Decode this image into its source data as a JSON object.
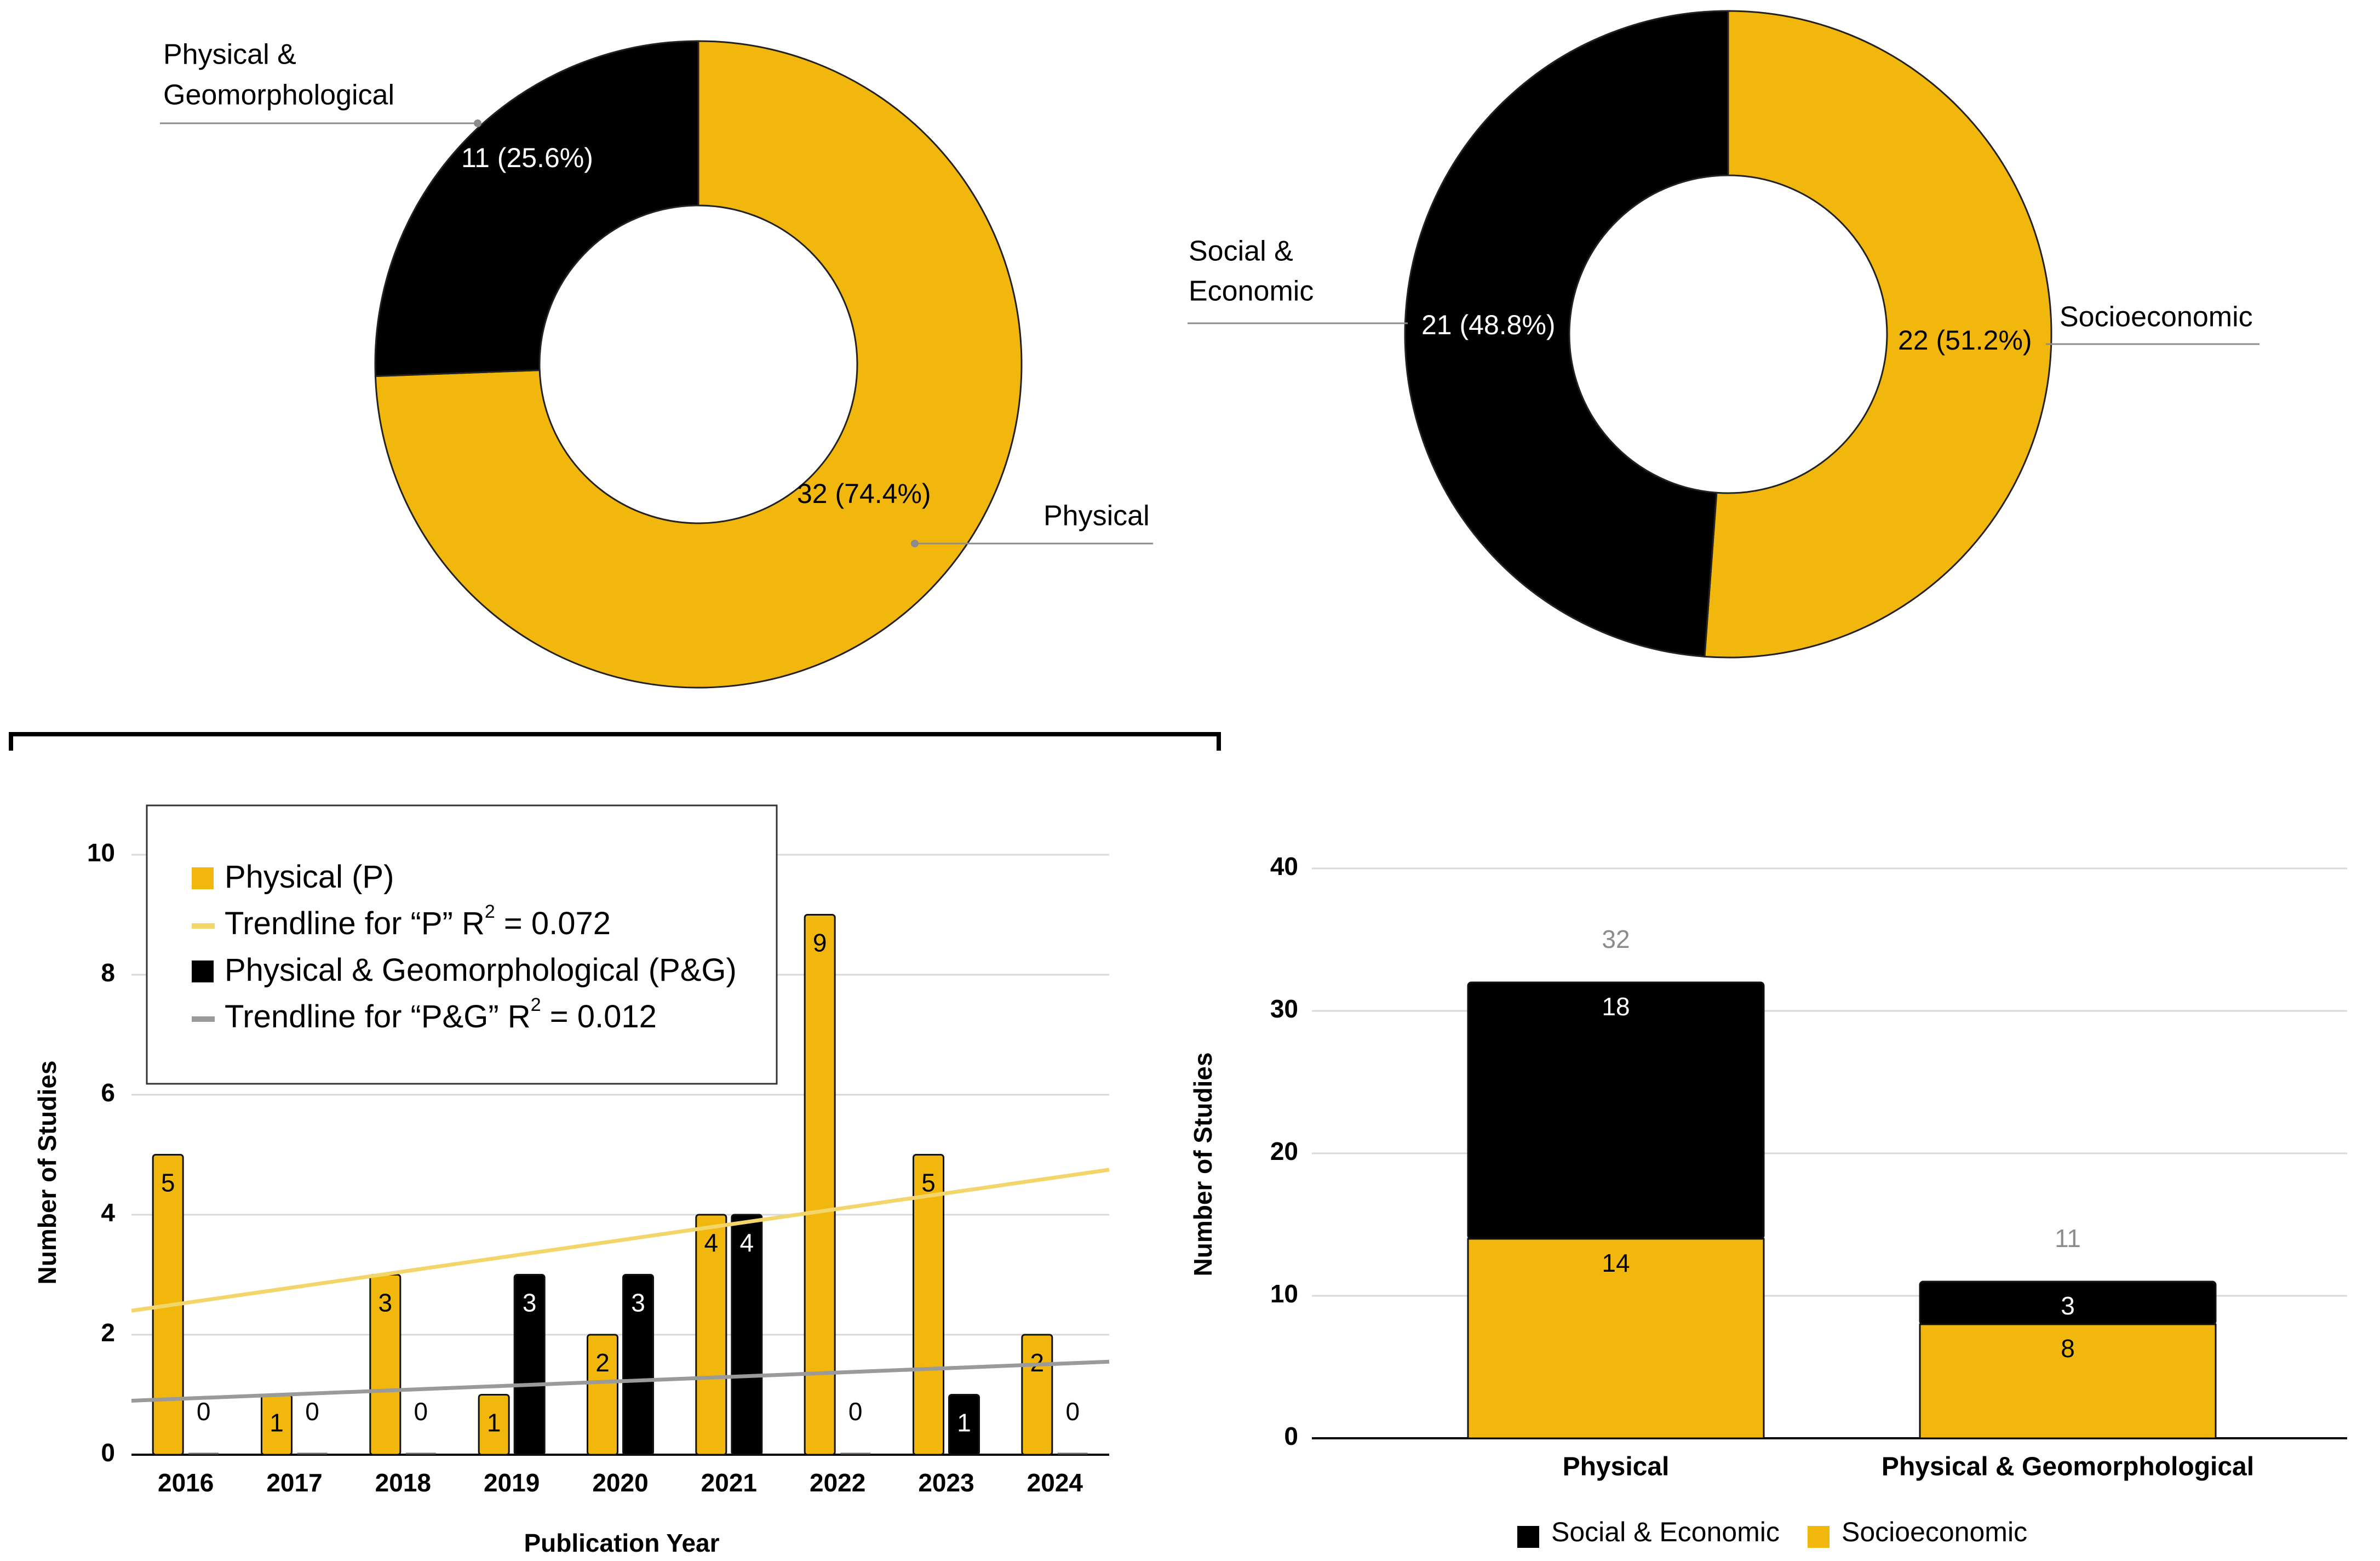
{
  "colors": {
    "gold": "#F2B70D",
    "black": "#000000",
    "trend_p": "#F3D66B",
    "trend_pg": "#9A9A9A",
    "grid": "#D9D9D9",
    "leader": "#8C8C8C",
    "total_label": "#8C8C8C"
  },
  "chart_data": [
    {
      "type": "pie",
      "variant": "donut",
      "title": "",
      "slices": [
        {
          "name": "Physical",
          "value": 32,
          "percent": 74.4,
          "label": "32 (74.4%)",
          "color": "#F2B70D"
        },
        {
          "name": "Physical & Geomorphological",
          "value": 11,
          "percent": 25.6,
          "label": "11 (25.6%)",
          "color": "#000000"
        }
      ],
      "external_labels": [
        "Physical",
        "Physical &",
        "Geomorphological"
      ]
    },
    {
      "type": "pie",
      "variant": "donut",
      "title": "",
      "slices": [
        {
          "name": "Socioeconomic",
          "value": 22,
          "percent": 51.2,
          "label": "22 (51.2%)",
          "color": "#F2B70D"
        },
        {
          "name": "Social & Economic",
          "value": 21,
          "percent": 48.8,
          "label": "21 (48.8%)",
          "color": "#000000"
        }
      ],
      "external_labels": [
        "Socioeconomic",
        "Social &",
        "Economic"
      ]
    },
    {
      "type": "bar",
      "title": "",
      "categories": [
        "2016",
        "2017",
        "2018",
        "2019",
        "2020",
        "2021",
        "2022",
        "2023",
        "2024"
      ],
      "series": [
        {
          "name": "Physical (P)",
          "values": [
            5,
            1,
            3,
            1,
            2,
            4,
            9,
            5,
            2
          ],
          "color": "#F2B70D"
        },
        {
          "name": "Physical & Geomorphological (P&G)",
          "values": [
            0,
            0,
            0,
            3,
            3,
            4,
            0,
            1,
            0
          ],
          "color": "#000000"
        }
      ],
      "trendlines": [
        {
          "name": "Trendline for “P”",
          "r2": "R2 = 0.072",
          "start": 2.4,
          "end": 4.75,
          "color": "#F3D66B"
        },
        {
          "name": "Trendline for “P&G”",
          "r2": "R2 = 0.012",
          "start": 0.9,
          "end": 1.55,
          "color": "#9A9A9A"
        }
      ],
      "legend": [
        {
          "label": "Physical (P)",
          "kind": "swatch",
          "color": "#F2B70D"
        },
        {
          "label": "Trendline for “P” R",
          "sup": "2",
          "tail": " = 0.072",
          "kind": "line",
          "color": "#F3D66B"
        },
        {
          "label": "Physical & Geomorphological (P&G)",
          "kind": "swatch",
          "color": "#000000"
        },
        {
          "label": "Trendline for “P&G” R",
          "sup": "2",
          "tail": " = 0.012",
          "kind": "line",
          "color": "#9A9A9A"
        }
      ],
      "xlabel": "Publication Year",
      "ylabel": "Number of Studies",
      "ylim": [
        0,
        10
      ],
      "yticks": [
        0,
        2,
        4,
        6,
        8,
        10
      ],
      "legend_position": "top-left"
    },
    {
      "type": "bar",
      "stacked": true,
      "title": "",
      "categories": [
        "Physical",
        "Physical & Geomorphological"
      ],
      "series": [
        {
          "name": "Socioeconomic",
          "values": [
            14,
            8
          ],
          "color": "#F2B70D"
        },
        {
          "name": "Social & Economic",
          "values": [
            18,
            3
          ],
          "color": "#000000"
        }
      ],
      "totals": [
        32,
        11
      ],
      "legend": [
        {
          "label": "Social & Economic",
          "color": "#000000"
        },
        {
          "label": "Socioeconomic",
          "color": "#F2B70D"
        }
      ],
      "xlabel": "",
      "ylabel": "Number of Studies",
      "ylim": [
        0,
        40
      ],
      "yticks": [
        0,
        10,
        20,
        30,
        40
      ],
      "legend_position": "bottom"
    }
  ]
}
